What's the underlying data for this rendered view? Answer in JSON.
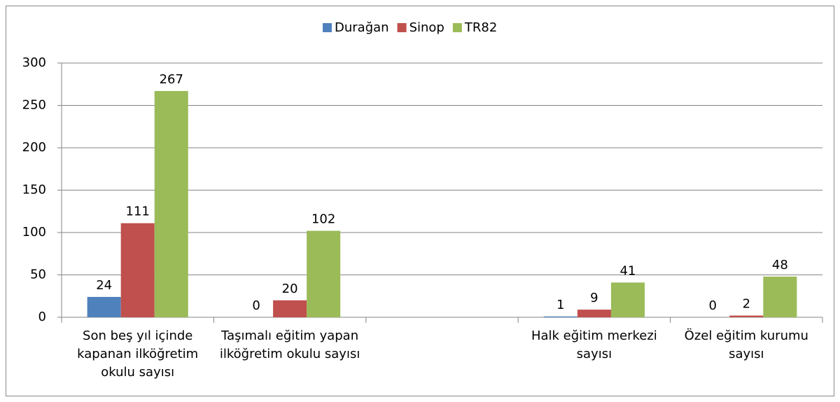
{
  "chart_data": {
    "type": "bar",
    "categories": [
      "Son beş yıl içinde kapanan ilköğretim okulu sayısı",
      "Taşımalı eğitim yapan ilköğretim okulu sayısı",
      null,
      "Halk eğitim merkezi sayısı",
      "Özel eğitim kurumu sayısı"
    ],
    "series": [
      {
        "name": "Durağan",
        "color": "#4f81bd",
        "values": [
          24,
          0,
          null,
          1,
          0
        ]
      },
      {
        "name": "Sinop",
        "color": "#c0504d",
        "values": [
          111,
          20,
          null,
          9,
          2
        ]
      },
      {
        "name": "TR82",
        "color": "#9bbb59",
        "values": [
          267,
          102,
          null,
          41,
          48
        ]
      }
    ],
    "ylim": [
      0,
      300
    ],
    "yticks": [
      0,
      50,
      100,
      150,
      200,
      250,
      300
    ],
    "grid": true,
    "legend": "top"
  }
}
